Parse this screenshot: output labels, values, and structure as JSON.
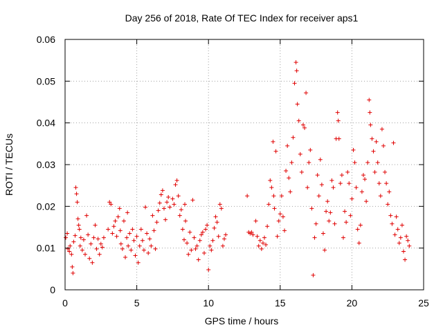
{
  "chart_data": {
    "type": "scatter",
    "title": "Day 256 of 2018, Rate Of TEC Index for receiver aps1",
    "xlabel": "GPS time / hours",
    "ylabel": "ROTI / TECUs",
    "xlim": [
      0,
      25
    ],
    "ylim": [
      0,
      0.06
    ],
    "x_ticks": [
      0,
      5,
      10,
      15,
      20,
      25
    ],
    "y_ticks": [
      0,
      0.01,
      0.02,
      0.03,
      0.04,
      0.05,
      0.06
    ],
    "grid": true,
    "marker": "+",
    "color": "#e00000",
    "series": [
      {
        "values": [
          [
            0.05,
            0.0125
          ],
          [
            0.15,
            0.0135
          ],
          [
            0.2,
            0.0098
          ],
          [
            0.3,
            0.0092
          ],
          [
            0.35,
            0.0105
          ],
          [
            0.45,
            0.0085
          ],
          [
            0.5,
            0.0055
          ],
          [
            0.55,
            0.004
          ],
          [
            0.6,
            0.0115
          ],
          [
            0.7,
            0.013
          ],
          [
            0.75,
            0.0245
          ],
          [
            0.8,
            0.023
          ],
          [
            0.85,
            0.021
          ],
          [
            0.9,
            0.017
          ],
          [
            0.95,
            0.0155
          ],
          [
            1.0,
            0.0145
          ],
          [
            1.05,
            0.0105
          ],
          [
            1.1,
            0.0125
          ],
          [
            1.2,
            0.0095
          ],
          [
            1.3,
            0.012
          ],
          [
            1.4,
            0.0085
          ],
          [
            1.5,
            0.0178
          ],
          [
            1.6,
            0.0132
          ],
          [
            1.7,
            0.0075
          ],
          [
            1.8,
            0.011
          ],
          [
            1.9,
            0.0065
          ],
          [
            2.0,
            0.0125
          ],
          [
            2.1,
            0.0155
          ],
          [
            2.2,
            0.0098
          ],
          [
            2.3,
            0.0122
          ],
          [
            2.4,
            0.0085
          ],
          [
            2.5,
            0.011
          ],
          [
            2.6,
            0.0102
          ],
          [
            2.7,
            0.0125
          ],
          [
            3.0,
            0.0145
          ],
          [
            3.1,
            0.021
          ],
          [
            3.2,
            0.0205
          ],
          [
            3.3,
            0.0135
          ],
          [
            3.4,
            0.0152
          ],
          [
            3.5,
            0.0165
          ],
          [
            3.6,
            0.0128
          ],
          [
            3.7,
            0.0175
          ],
          [
            3.8,
            0.0195
          ],
          [
            3.85,
            0.0142
          ],
          [
            3.9,
            0.011
          ],
          [
            4.0,
            0.0098
          ],
          [
            4.1,
            0.0165
          ],
          [
            4.2,
            0.0078
          ],
          [
            4.3,
            0.0125
          ],
          [
            4.35,
            0.0185
          ],
          [
            4.4,
            0.0105
          ],
          [
            4.5,
            0.0135
          ],
          [
            4.6,
            0.0095
          ],
          [
            4.7,
            0.0145
          ],
          [
            4.8,
            0.0118
          ],
          [
            4.9,
            0.0082
          ],
          [
            5.0,
            0.0128
          ],
          [
            5.1,
            0.0065
          ],
          [
            5.2,
            0.0105
          ],
          [
            5.3,
            0.0145
          ],
          [
            5.4,
            0.0118
          ],
          [
            5.5,
            0.0095
          ],
          [
            5.6,
            0.0198
          ],
          [
            5.7,
            0.0135
          ],
          [
            5.8,
            0.0088
          ],
          [
            5.9,
            0.0122
          ],
          [
            6.0,
            0.0105
          ],
          [
            6.1,
            0.0178
          ],
          [
            6.2,
            0.0142
          ],
          [
            6.3,
            0.0098
          ],
          [
            6.4,
            0.0162
          ],
          [
            6.5,
            0.019
          ],
          [
            6.6,
            0.0208
          ],
          [
            6.7,
            0.0228
          ],
          [
            6.8,
            0.0238
          ],
          [
            6.9,
            0.0195
          ],
          [
            7.0,
            0.0168
          ],
          [
            7.1,
            0.021
          ],
          [
            7.2,
            0.0222
          ],
          [
            7.3,
            0.0198
          ],
          [
            7.5,
            0.0218
          ],
          [
            7.6,
            0.0205
          ],
          [
            7.7,
            0.0252
          ],
          [
            7.8,
            0.0262
          ],
          [
            7.9,
            0.0225
          ],
          [
            8.0,
            0.0178
          ],
          [
            8.1,
            0.0192
          ],
          [
            8.2,
            0.0145
          ],
          [
            8.3,
            0.012
          ],
          [
            8.35,
            0.0205
          ],
          [
            8.4,
            0.0165
          ],
          [
            8.5,
            0.0112
          ],
          [
            8.6,
            0.0085
          ],
          [
            8.7,
            0.0138
          ],
          [
            8.8,
            0.0095
          ],
          [
            8.9,
            0.0215
          ],
          [
            9.0,
            0.0125
          ],
          [
            9.1,
            0.0098
          ],
          [
            9.2,
            0.0105
          ],
          [
            9.3,
            0.0072
          ],
          [
            9.4,
            0.0118
          ],
          [
            9.5,
            0.0132
          ],
          [
            9.6,
            0.0138
          ],
          [
            9.7,
            0.0088
          ],
          [
            9.8,
            0.0145
          ],
          [
            9.9,
            0.0155
          ],
          [
            10.0,
            0.0048
          ],
          [
            10.1,
            0.0105
          ],
          [
            10.2,
            0.0095
          ],
          [
            10.3,
            0.0118
          ],
          [
            10.4,
            0.0148
          ],
          [
            10.5,
            0.0175
          ],
          [
            10.6,
            0.0162
          ],
          [
            10.7,
            0.0128
          ],
          [
            10.8,
            0.0205
          ],
          [
            10.9,
            0.0195
          ],
          [
            11.0,
            0.0105
          ],
          [
            11.1,
            0.0122
          ],
          [
            11.2,
            0.0132
          ],
          [
            12.7,
            0.0225
          ],
          [
            12.8,
            0.0138
          ],
          [
            12.9,
            0.0135
          ],
          [
            13.0,
            0.0138
          ],
          [
            13.1,
            0.0132
          ],
          [
            13.3,
            0.0165
          ],
          [
            13.4,
            0.0128
          ],
          [
            13.5,
            0.0105
          ],
          [
            13.6,
            0.0118
          ],
          [
            13.7,
            0.0098
          ],
          [
            13.8,
            0.0112
          ],
          [
            13.9,
            0.0125
          ],
          [
            14.0,
            0.0108
          ],
          [
            14.1,
            0.0152
          ],
          [
            14.2,
            0.0205
          ],
          [
            14.3,
            0.0262
          ],
          [
            14.4,
            0.0245
          ],
          [
            14.5,
            0.0355
          ],
          [
            14.55,
            0.0225
          ],
          [
            14.6,
            0.0195
          ],
          [
            14.7,
            0.0332
          ],
          [
            14.8,
            0.0128
          ],
          [
            14.9,
            0.0165
          ],
          [
            15.0,
            0.0182
          ],
          [
            15.1,
            0.0225
          ],
          [
            15.2,
            0.0175
          ],
          [
            15.3,
            0.0142
          ],
          [
            15.4,
            0.0285
          ],
          [
            15.5,
            0.0345
          ],
          [
            15.6,
            0.0268
          ],
          [
            15.7,
            0.0235
          ],
          [
            15.8,
            0.0305
          ],
          [
            15.9,
            0.0365
          ],
          [
            16.0,
            0.0495
          ],
          [
            16.1,
            0.0545
          ],
          [
            16.15,
            0.0525
          ],
          [
            16.2,
            0.0445
          ],
          [
            16.3,
            0.0405
          ],
          [
            16.4,
            0.0325
          ],
          [
            16.5,
            0.0282
          ],
          [
            16.6,
            0.0395
          ],
          [
            16.7,
            0.0388
          ],
          [
            16.8,
            0.0472
          ],
          [
            16.9,
            0.0245
          ],
          [
            17.0,
            0.0305
          ],
          [
            17.1,
            0.0335
          ],
          [
            17.2,
            0.0195
          ],
          [
            17.3,
            0.0035
          ],
          [
            17.4,
            0.0125
          ],
          [
            17.5,
            0.0158
          ],
          [
            17.6,
            0.0275
          ],
          [
            17.7,
            0.0225
          ],
          [
            17.8,
            0.0312
          ],
          [
            17.9,
            0.0252
          ],
          [
            18.0,
            0.0135
          ],
          [
            18.1,
            0.0095
          ],
          [
            18.2,
            0.0188
          ],
          [
            18.3,
            0.0212
          ],
          [
            18.4,
            0.0165
          ],
          [
            18.5,
            0.0185
          ],
          [
            18.6,
            0.0262
          ],
          [
            18.7,
            0.0245
          ],
          [
            18.8,
            0.0158
          ],
          [
            18.9,
            0.0362
          ],
          [
            19.0,
            0.0425
          ],
          [
            19.05,
            0.0405
          ],
          [
            19.1,
            0.0362
          ],
          [
            19.2,
            0.0255
          ],
          [
            19.3,
            0.0275
          ],
          [
            19.4,
            0.0125
          ],
          [
            19.5,
            0.0188
          ],
          [
            19.6,
            0.0162
          ],
          [
            19.7,
            0.0282
          ],
          [
            19.8,
            0.0255
          ],
          [
            19.9,
            0.0178
          ],
          [
            20.0,
            0.0218
          ],
          [
            20.1,
            0.0335
          ],
          [
            20.2,
            0.0305
          ],
          [
            20.3,
            0.0245
          ],
          [
            20.4,
            0.0145
          ],
          [
            20.5,
            0.0112
          ],
          [
            20.6,
            0.0155
          ],
          [
            20.7,
            0.0235
          ],
          [
            20.8,
            0.0275
          ],
          [
            20.9,
            0.0265
          ],
          [
            21.0,
            0.0212
          ],
          [
            21.1,
            0.0305
          ],
          [
            21.2,
            0.0455
          ],
          [
            21.25,
            0.0425
          ],
          [
            21.3,
            0.0395
          ],
          [
            21.4,
            0.0362
          ],
          [
            21.5,
            0.0332
          ],
          [
            21.6,
            0.0282
          ],
          [
            21.7,
            0.0355
          ],
          [
            21.8,
            0.0305
          ],
          [
            21.9,
            0.0255
          ],
          [
            22.0,
            0.0225
          ],
          [
            22.1,
            0.0385
          ],
          [
            22.2,
            0.0345
          ],
          [
            22.3,
            0.0282
          ],
          [
            22.4,
            0.0255
          ],
          [
            22.5,
            0.0205
          ],
          [
            22.6,
            0.0235
          ],
          [
            22.7,
            0.0178
          ],
          [
            22.8,
            0.0158
          ],
          [
            22.9,
            0.0352
          ],
          [
            23.0,
            0.0132
          ],
          [
            23.1,
            0.0175
          ],
          [
            23.2,
            0.0145
          ],
          [
            23.3,
            0.0112
          ],
          [
            23.4,
            0.0125
          ],
          [
            23.5,
            0.0155
          ],
          [
            23.6,
            0.0092
          ],
          [
            23.7,
            0.0072
          ],
          [
            23.8,
            0.0128
          ],
          [
            23.9,
            0.0118
          ],
          [
            24.0,
            0.0105
          ]
        ]
      }
    ]
  }
}
